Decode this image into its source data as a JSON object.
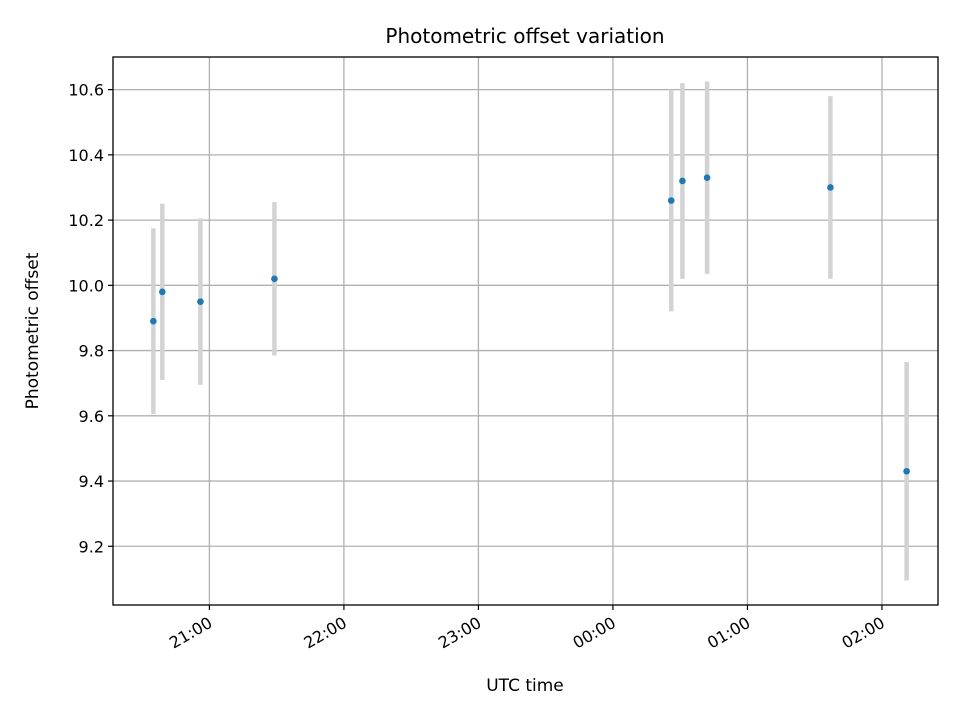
{
  "chart_data": {
    "type": "scatter",
    "title": "Photometric offset variation",
    "xlabel": "UTC time",
    "ylabel": "Photometric offset",
    "x_axis_type": "time",
    "xlim": [
      "20:17",
      "02:25"
    ],
    "ylim": [
      9.02,
      10.7
    ],
    "grid": true,
    "legend": "none",
    "x_ticks": [
      "21:00",
      "22:00",
      "23:00",
      "00:00",
      "01:00",
      "02:00"
    ],
    "y_ticks": [
      "9.2",
      "9.4",
      "9.6",
      "9.8",
      "10.0",
      "10.2",
      "10.4",
      "10.6"
    ],
    "colors": {
      "point": "#1f77b4",
      "errorbar": "#d3d3d3",
      "grid": "#b0b0b0"
    },
    "series": [
      {
        "points": [
          {
            "x": "20:35",
            "y": 9.89,
            "yerr": 0.285
          },
          {
            "x": "20:39",
            "y": 9.98,
            "yerr": 0.27
          },
          {
            "x": "20:56",
            "y": 9.95,
            "yerr": 0.255
          },
          {
            "x": "21:29",
            "y": 10.02,
            "yerr": 0.235
          },
          {
            "x": "00:26",
            "y": 10.26,
            "yerr": 0.34
          },
          {
            "x": "00:31",
            "y": 10.32,
            "yerr": 0.3
          },
          {
            "x": "00:42",
            "y": 10.33,
            "yerr": 0.295
          },
          {
            "x": "01:37",
            "y": 10.3,
            "yerr": 0.28
          },
          {
            "x": "02:11",
            "y": 9.43,
            "yerr": 0.335
          }
        ]
      }
    ]
  }
}
